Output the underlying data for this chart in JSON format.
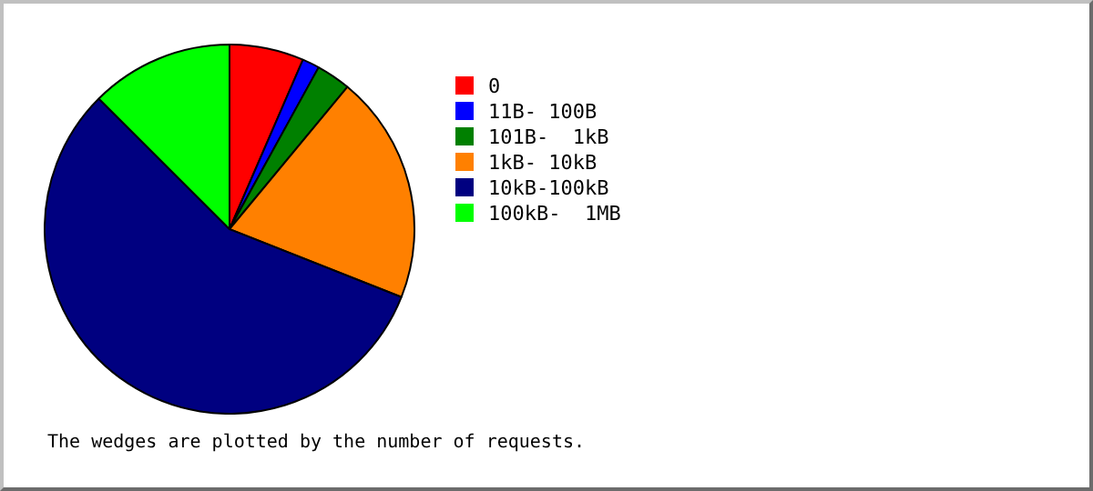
{
  "chart_data": {
    "type": "pie",
    "categories": [
      "0",
      "11B- 100B",
      "101B-  1kB",
      "1kB- 10kB",
      "10kB-100kB",
      "100kB-  1MB"
    ],
    "values": [
      6.5,
      1.5,
      3,
      20,
      56.5,
      12.5
    ],
    "colors": [
      "#ff0000",
      "#0000ff",
      "#008000",
      "#ff8000",
      "#000080",
      "#00ff00"
    ],
    "legend": "right",
    "annotations": [
      "The wedges are plotted by the number of requests."
    ]
  }
}
